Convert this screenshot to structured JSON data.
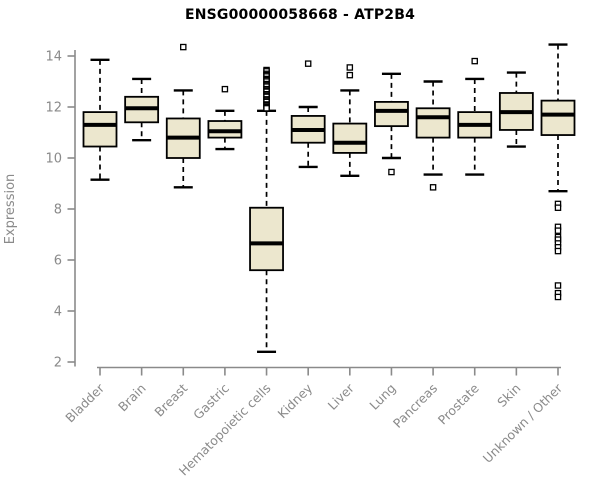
{
  "chart_data": {
    "type": "boxplot",
    "title": "ENSG00000058668 - ATP2B4",
    "ylabel": "Expression",
    "xlabel": "",
    "ylim": [
      2,
      14.6
    ],
    "yticks": [
      2,
      4,
      6,
      8,
      10,
      12,
      14
    ],
    "grid": false,
    "legend": "none",
    "categories": [
      "Bladder",
      "Brain",
      "Breast",
      "Gastric",
      "Hematopoietic cells",
      "Kidney",
      "Liver",
      "Lung",
      "Pancreas",
      "Prostate",
      "Skin",
      "Unknown / Other"
    ],
    "series": [
      {
        "name": "Bladder",
        "whisker_low": 9.15,
        "q1": 10.45,
        "median": 11.3,
        "q3": 11.8,
        "whisker_high": 13.85,
        "outliers": []
      },
      {
        "name": "Brain",
        "whisker_low": 10.7,
        "q1": 11.4,
        "median": 11.95,
        "q3": 12.4,
        "whisker_high": 13.1,
        "outliers": []
      },
      {
        "name": "Breast",
        "whisker_low": 8.85,
        "q1": 10.0,
        "median": 10.8,
        "q3": 11.55,
        "whisker_high": 12.65,
        "outliers": [
          14.35
        ]
      },
      {
        "name": "Gastric",
        "whisker_low": 10.35,
        "q1": 10.8,
        "median": 11.05,
        "q3": 11.45,
        "whisker_high": 11.85,
        "outliers": [
          12.7
        ]
      },
      {
        "name": "Hematopoietic cells",
        "whisker_low": 2.4,
        "q1": 5.6,
        "median": 6.65,
        "q3": 8.05,
        "whisker_high": 11.85,
        "outliers": [
          13.45,
          13.4,
          13.3,
          13.25,
          13.2,
          13.1,
          13.05,
          13.0,
          12.9,
          12.85,
          12.8,
          12.7,
          12.65,
          12.6,
          12.5,
          12.45,
          12.4,
          12.3,
          12.25,
          12.2,
          12.1,
          12.05,
          12.0,
          11.95
        ]
      },
      {
        "name": "Kidney",
        "whisker_low": 9.65,
        "q1": 10.6,
        "median": 11.1,
        "q3": 11.65,
        "whisker_high": 12.0,
        "outliers": [
          13.7
        ]
      },
      {
        "name": "Liver",
        "whisker_low": 9.3,
        "q1": 10.2,
        "median": 10.6,
        "q3": 11.35,
        "whisker_high": 12.65,
        "outliers": [
          13.55,
          13.25
        ]
      },
      {
        "name": "Lung",
        "whisker_low": 10.0,
        "q1": 11.25,
        "median": 11.85,
        "q3": 12.2,
        "whisker_high": 13.3,
        "outliers": [
          9.45
        ]
      },
      {
        "name": "Pancreas",
        "whisker_low": 9.35,
        "q1": 10.8,
        "median": 11.6,
        "q3": 11.95,
        "whisker_high": 13.0,
        "outliers": [
          8.85
        ]
      },
      {
        "name": "Prostate",
        "whisker_low": 9.35,
        "q1": 10.8,
        "median": 11.3,
        "q3": 11.8,
        "whisker_high": 13.1,
        "outliers": [
          13.8
        ]
      },
      {
        "name": "Skin",
        "whisker_low": 10.45,
        "q1": 11.1,
        "median": 11.8,
        "q3": 12.55,
        "whisker_high": 13.35,
        "outliers": []
      },
      {
        "name": "Unknown / Other",
        "whisker_low": 8.7,
        "q1": 10.9,
        "median": 11.7,
        "q3": 12.25,
        "whisker_high": 14.45,
        "outliers": [
          8.2,
          8.05,
          7.3,
          7.15,
          6.9,
          6.8,
          6.65,
          6.5,
          6.35,
          5.0,
          4.7,
          4.55
        ]
      }
    ],
    "colors": {
      "box_fill": "#ECE7CE",
      "box_border": "#000000",
      "median_line": "#000000",
      "whisker": "#000000",
      "outlier_stroke": "#000000",
      "outlier_fill": "#ffffff",
      "axis": "#8A8A8A",
      "tick_label": "#8A8A8A",
      "title_text": "#000000",
      "background": "#ffffff"
    }
  }
}
